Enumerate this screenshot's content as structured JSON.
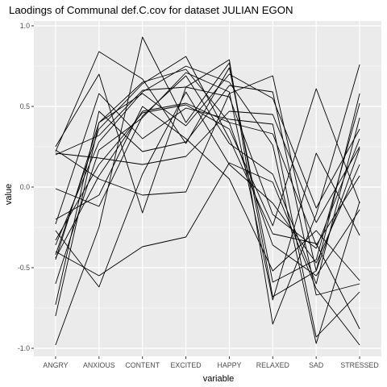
{
  "chart_data": {
    "type": "line",
    "title": "Laodings of Communal def.C.cov for dataset JULIAN EGON",
    "xlabel": "variable",
    "ylabel": "value",
    "categories": [
      "ANGRY",
      "ANXIOUS",
      "CONTENT",
      "EXCITED",
      "HAPPY",
      "RELAXED",
      "SAD",
      "STRESSED"
    ],
    "ylim": [
      -1.05,
      1.03
    ],
    "yticks": [
      -1.0,
      -0.5,
      0.0,
      0.5,
      1.0
    ],
    "ytick_labels": [
      "-1.0",
      "-0.5",
      "0.0",
      "0.5",
      "1.0"
    ],
    "grid": true,
    "background": "#ebebeb",
    "grid_color": "#ffffff",
    "line_color": "#000000",
    "series": [
      {
        "values": [
          0.25,
          0.7,
          -0.16,
          0.62,
          0.79,
          -0.85,
          -0.17,
          0.76
        ]
      },
      {
        "values": [
          0.22,
          0.84,
          0.67,
          0.27,
          0.74,
          -0.59,
          -0.45,
          0.52
        ]
      },
      {
        "values": [
          -0.98,
          -0.25,
          0.93,
          0.4,
          0.77,
          -0.68,
          -0.52,
          0.58
        ]
      },
      {
        "values": [
          -0.42,
          0.36,
          0.64,
          0.81,
          0.3,
          -0.29,
          -0.35,
          -0.88
        ]
      },
      {
        "values": [
          -0.6,
          0.23,
          0.43,
          0.71,
          0.59,
          -0.7,
          0.21,
          -0.3
        ]
      },
      {
        "values": [
          -0.73,
          0.47,
          0.22,
          0.28,
          0.63,
          0.59,
          -0.67,
          -0.6
        ]
      },
      {
        "values": [
          -0.8,
          0.4,
          0.65,
          0.73,
          0.4,
          -0.36,
          -0.55,
          -0.14
        ]
      },
      {
        "values": [
          -0.23,
          0.58,
          0.3,
          0.49,
          0.42,
          0.39,
          -0.93,
          -0.65
        ]
      },
      {
        "values": [
          -0.36,
          0.28,
          0.59,
          0.75,
          0.65,
          0.26,
          -0.97,
          -0.09
        ]
      },
      {
        "values": [
          -0.01,
          -0.12,
          0.44,
          0.69,
          0.27,
          0.08,
          -0.6,
          0.43
        ]
      },
      {
        "values": [
          0.2,
          0.32,
          0.6,
          0.62,
          0.56,
          -0.17,
          -0.38,
          0.3
        ]
      },
      {
        "values": [
          0.23,
          0.05,
          -0.05,
          -0.03,
          0.58,
          0.69,
          -0.52,
          0.24
        ]
      },
      {
        "values": [
          -0.27,
          -0.62,
          0.08,
          0.59,
          0.14,
          -0.1,
          -0.47,
          0.14
        ]
      },
      {
        "values": [
          -0.4,
          -0.55,
          -0.37,
          -0.31,
          0.15,
          0.03,
          -0.63,
          -0.98
        ]
      },
      {
        "values": [
          0.21,
          0.18,
          0.14,
          0.19,
          0.47,
          0.45,
          -0.22,
          0.25
        ]
      },
      {
        "values": [
          -0.45,
          0.4,
          0.58,
          0.38,
          0.7,
          0.55,
          -0.13,
          0.36
        ]
      },
      {
        "values": [
          -0.2,
          -0.05,
          0.5,
          0.3,
          0.05,
          -0.52,
          -0.27,
          -0.58
        ]
      },
      {
        "values": [
          -0.33,
          0.14,
          0.46,
          0.51,
          0.36,
          -0.24,
          0.61,
          -0.1
        ]
      },
      {
        "values": [
          -0.44,
          0.07,
          0.47,
          0.52,
          0.4,
          0.33,
          -0.36,
          0.07
        ]
      }
    ]
  }
}
